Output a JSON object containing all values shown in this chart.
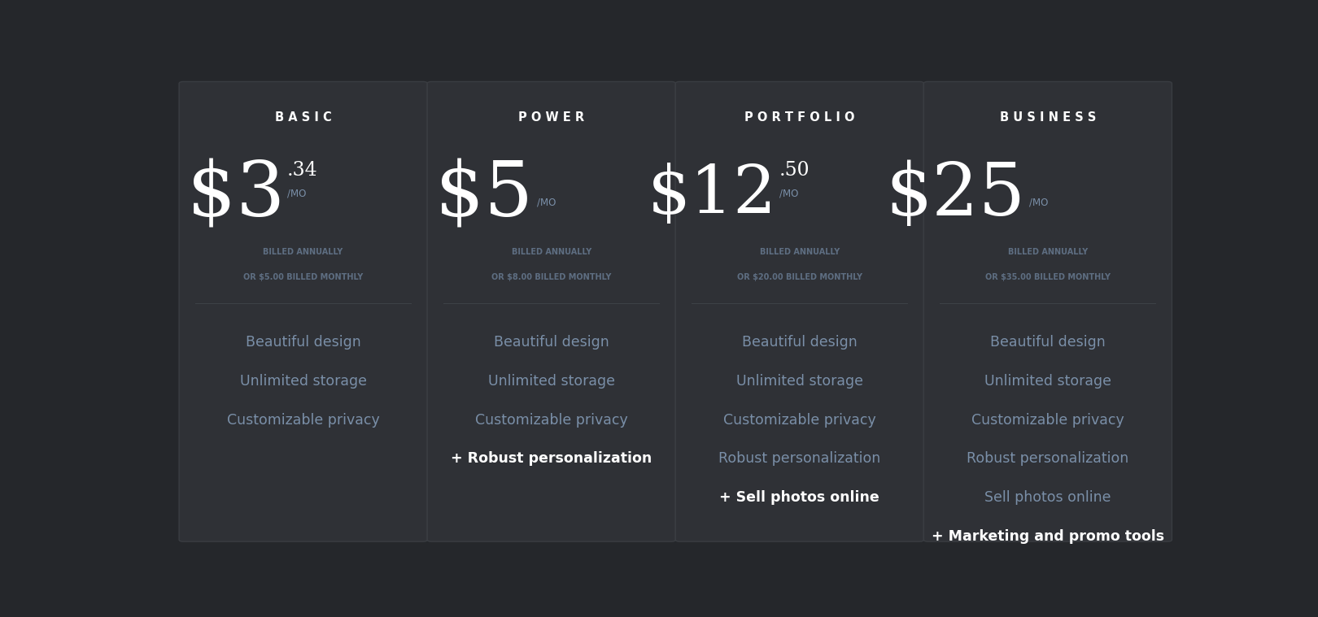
{
  "bg_color": "#2b2d30",
  "card_bg": "#2f3136",
  "card_border": "#3a3d42",
  "outer_bg": "#25272b",
  "plans": [
    {
      "name": "B A S I C",
      "price_main": "$3",
      "price_decimal": ".34",
      "price_unit": "/MO",
      "billing_line1": "BILLED ANNUALLY",
      "billing_line2": "OR $5.00 BILLED MONTHLY",
      "features": [
        {
          "text": "Beautiful design",
          "highlight": false
        },
        {
          "text": "Unlimited storage",
          "highlight": false
        },
        {
          "text": "Customizable privacy",
          "highlight": false
        }
      ]
    },
    {
      "name": "P O W E R",
      "price_main": "$5",
      "price_decimal": "",
      "price_unit": "/MO",
      "billing_line1": "BILLED ANNUALLY",
      "billing_line2": "OR $8.00 BILLED MONTHLY",
      "features": [
        {
          "text": "Beautiful design",
          "highlight": false
        },
        {
          "text": "Unlimited storage",
          "highlight": false
        },
        {
          "text": "Customizable privacy",
          "highlight": false
        },
        {
          "text": "+ Robust personalization",
          "highlight": true
        }
      ]
    },
    {
      "name": "P O R T F O L I O",
      "price_main": "$12",
      "price_decimal": ".50",
      "price_unit": "/MO",
      "billing_line1": "BILLED ANNUALLY",
      "billing_line2": "OR $20.00 BILLED MONTHLY",
      "features": [
        {
          "text": "Beautiful design",
          "highlight": false
        },
        {
          "text": "Unlimited storage",
          "highlight": false
        },
        {
          "text": "Customizable privacy",
          "highlight": false
        },
        {
          "text": "Robust personalization",
          "highlight": false
        },
        {
          "text": "+ Sell photos online",
          "highlight": true
        }
      ]
    },
    {
      "name": "B U S I N E S S",
      "price_main": "$25",
      "price_decimal": "",
      "price_unit": "/MO",
      "billing_line1": "BILLED ANNUALLY",
      "billing_line2": "OR $35.00 BILLED MONTHLY",
      "features": [
        {
          "text": "Beautiful design",
          "highlight": false
        },
        {
          "text": "Unlimited storage",
          "highlight": false
        },
        {
          "text": "Customizable privacy",
          "highlight": false
        },
        {
          "text": "Robust personalization",
          "highlight": false
        },
        {
          "text": "Sell photos online",
          "highlight": false
        },
        {
          "text": "+ Marketing and promo tools",
          "highlight": true
        }
      ]
    }
  ],
  "feature_color": "#7a8fa8",
  "highlight_color": "#ffffff",
  "plan_name_color": "#ffffff",
  "price_color": "#ffffff",
  "billing_color": "#5e6e82",
  "divider_color": "#3e4248",
  "price_unit_color": "#7a8fa8"
}
